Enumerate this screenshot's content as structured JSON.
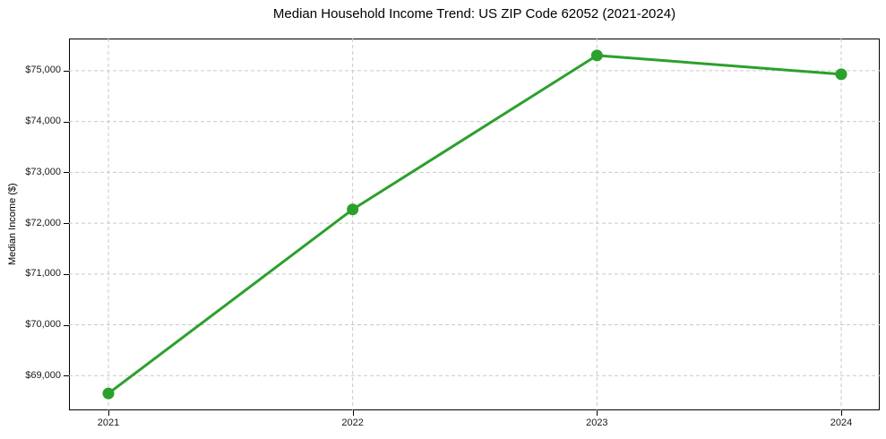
{
  "chart_data": {
    "type": "line",
    "title": "Median Household Income Trend: US ZIP Code 62052 (2021-2024)",
    "xlabel": "",
    "ylabel": "Median Income ($)",
    "x": [
      2021,
      2022,
      2023,
      2024
    ],
    "series": [
      {
        "values": [
          68650,
          72270,
          75300,
          74930
        ],
        "color": "#2ca02c",
        "marker": "circle",
        "marker_size": 6.5,
        "line_width": 3
      }
    ],
    "xticks": {
      "values": [
        2021,
        2022,
        2023,
        2024
      ],
      "labels": [
        "2021",
        "2022",
        "2023",
        "2024"
      ]
    },
    "yticks": {
      "values": [
        69000,
        70000,
        71000,
        72000,
        73000,
        74000,
        75000
      ],
      "labels": [
        "$69,000",
        "$70,000",
        "$71,000",
        "$72,000",
        "$73,000",
        "$74,000",
        "$75,000"
      ]
    },
    "xlim": [
      2020.8386,
      2024.1577
    ],
    "ylim": [
      68317.5,
      75632.5
    ],
    "grid": true,
    "grid_color": "#c9c9c9",
    "grid_dash": "4 3",
    "legend": false,
    "background": "#ffffff",
    "axis_color": "#000000",
    "tick_label_color": "#1a1a1a"
  }
}
